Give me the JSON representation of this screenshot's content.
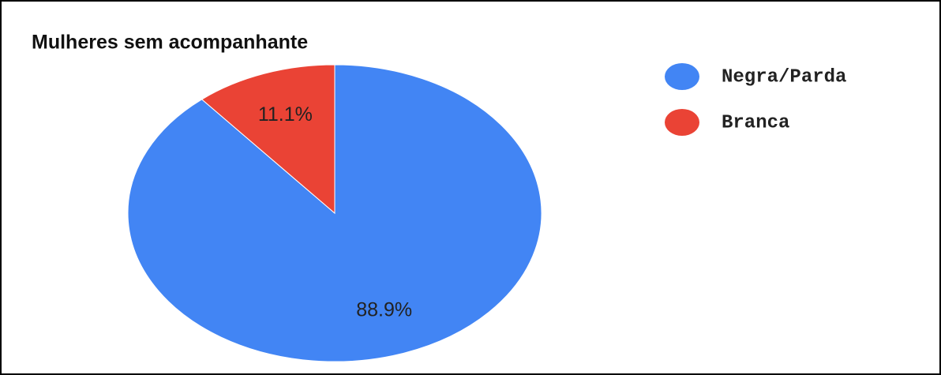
{
  "chart_data": {
    "type": "pie",
    "title": "Mulheres sem acompanhante",
    "categories": [
      "Negra/Parda",
      "Branca"
    ],
    "values": [
      88.9,
      11.1
    ],
    "value_labels": [
      "88.9%",
      "11.1%"
    ],
    "colors": [
      "#4285f4",
      "#ea4335"
    ]
  }
}
